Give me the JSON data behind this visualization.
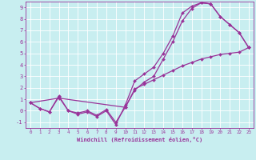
{
  "xlabel": "Windchill (Refroidissement éolien,°C)",
  "bg_color": "#c8eef0",
  "line_color": "#993399",
  "grid_color": "#ffffff",
  "xlim": [
    -0.5,
    23.5
  ],
  "ylim": [
    -1.5,
    9.5
  ],
  "xticks": [
    0,
    1,
    2,
    3,
    4,
    5,
    6,
    7,
    8,
    9,
    10,
    11,
    12,
    13,
    14,
    15,
    16,
    17,
    18,
    19,
    20,
    21,
    22,
    23
  ],
  "yticks": [
    -1,
    0,
    1,
    2,
    3,
    4,
    5,
    6,
    7,
    8,
    9
  ],
  "line1_x": [
    0,
    1,
    2,
    3,
    4,
    5,
    6,
    7,
    8,
    9,
    10,
    11,
    12,
    13,
    14,
    15,
    16,
    17,
    18,
    19,
    20,
    21,
    22,
    23
  ],
  "line1_y": [
    0.7,
    0.2,
    -0.1,
    1.2,
    0.0,
    -0.3,
    -0.1,
    -0.5,
    0.0,
    -1.2,
    0.5,
    2.6,
    3.2,
    3.8,
    5.0,
    6.5,
    8.5,
    9.1,
    9.4,
    9.3,
    8.2,
    7.5,
    6.8,
    5.5
  ],
  "line2_x": [
    0,
    1,
    2,
    3,
    4,
    5,
    6,
    7,
    8,
    9,
    10,
    11,
    12,
    13,
    14,
    15,
    16,
    17,
    18,
    19,
    20,
    21,
    22,
    23
  ],
  "line2_y": [
    0.7,
    0.2,
    -0.1,
    1.3,
    0.0,
    -0.2,
    0.0,
    -0.4,
    0.1,
    -1.0,
    0.3,
    1.8,
    2.5,
    3.0,
    4.5,
    6.0,
    7.8,
    8.9,
    9.4,
    9.3,
    8.2,
    7.5,
    6.8,
    5.5
  ],
  "line3_x": [
    0,
    3,
    10,
    11,
    12,
    13,
    14,
    15,
    16,
    17,
    18,
    19,
    20,
    21,
    22,
    23
  ],
  "line3_y": [
    0.7,
    1.1,
    0.3,
    1.9,
    2.3,
    2.7,
    3.1,
    3.5,
    3.9,
    4.2,
    4.5,
    4.7,
    4.9,
    5.0,
    5.1,
    5.5
  ]
}
